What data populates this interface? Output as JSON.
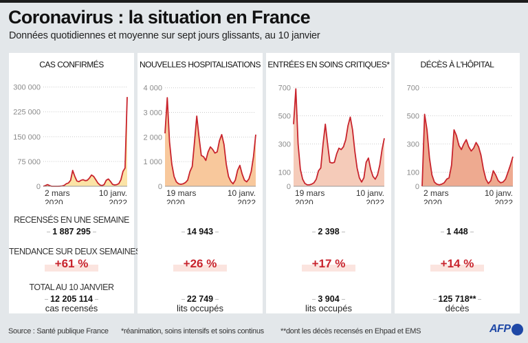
{
  "header": {
    "title": "Coronavirus : la situation en France",
    "subtitle": "Données quotidiennes et moyenne sur sept jours glissants, au 10 janvier"
  },
  "row_labels": {
    "weekly": "RECENSÉS EN UNE SEMAINE",
    "trend": "TENDANCE SUR DEUX SEMAINES",
    "total": "TOTAL AU 10 JANVIER"
  },
  "colors": {
    "line": "#c8232c",
    "trend_text": "#c8232c",
    "trend_bg": "#fbe4df",
    "logo": "#1f48a6"
  },
  "panels": [
    {
      "title": "CAS CONFIRMÉS",
      "weekly": "1 887 295",
      "trend": "+61 %",
      "total": "12 205 114",
      "unit": "cas recensés"
    },
    {
      "title": "NOUVELLES HOSPITALISATIONS",
      "weekly": "14 943",
      "trend": "+26 %",
      "total": "22 749",
      "unit": "lits occupés"
    },
    {
      "title": "ENTRÉES EN SOINS CRITIQUES*",
      "weekly": "2 398",
      "trend": "+17 %",
      "total": "3 904",
      "unit": "lits occupés"
    },
    {
      "title": "DÉCÈS À L'HÔPITAL",
      "weekly": "1 448",
      "trend": "+14 %",
      "total": "125 718**",
      "unit": "décès"
    }
  ],
  "footer": {
    "source": "Source : Santé publique France",
    "note1": "*réanimation, soins intensifs et soins continus",
    "note2": "**dont les décès recensés en Ehpad et EMS",
    "logo": "AFP"
  },
  "chart_data": [
    {
      "type": "area",
      "title": "CAS CONFIRMÉS",
      "x_start_label": [
        "2 mars",
        "2020"
      ],
      "x_end_label": [
        "10 janv.",
        "2022"
      ],
      "ylim": [
        0,
        320000
      ],
      "yticks": [
        0,
        75000,
        150000,
        225000,
        300000
      ],
      "ytick_labels": [
        "0",
        "75 000",
        "150 000",
        "225 000",
        "300 000"
      ],
      "fill_color": "#fbe3a6",
      "series": [
        {
          "name": "moyenne sur sept jours",
          "values": [
            0,
            2000,
            5000,
            2000,
            0,
            0,
            0,
            0,
            500,
            1000,
            3000,
            8000,
            10000,
            18000,
            48000,
            30000,
            16000,
            14000,
            18000,
            20000,
            17000,
            18000,
            25000,
            34000,
            30000,
            20000,
            10000,
            4000,
            2000,
            5000,
            18000,
            22000,
            15000,
            6000,
            4000,
            5000,
            8000,
            20000,
            45000,
            55000,
            270000
          ]
        }
      ]
    },
    {
      "type": "area",
      "title": "NOUVELLES HOSPITALISATIONS",
      "x_start_label": [
        "19 mars",
        "2020"
      ],
      "x_end_label": [
        "10 janv.",
        "2022"
      ],
      "ylim": [
        0,
        4300
      ],
      "yticks": [
        0,
        1000,
        2000,
        3000,
        4000
      ],
      "ytick_labels": [
        "0",
        "1 000",
        "2 000",
        "3 000",
        "4 000"
      ],
      "fill_color": "#f8c89c",
      "series": [
        {
          "name": "moyenne sur sept jours",
          "values": [
            2150,
            3600,
            1800,
            900,
            400,
            180,
            100,
            80,
            100,
            150,
            250,
            600,
            800,
            1800,
            2850,
            2000,
            1250,
            1200,
            1050,
            1400,
            1600,
            1500,
            1350,
            1400,
            1850,
            2100,
            1700,
            900,
            400,
            200,
            100,
            250,
            650,
            850,
            500,
            250,
            180,
            300,
            600,
            1200,
            2100
          ]
        }
      ]
    },
    {
      "type": "area",
      "title": "ENTRÉES EN SOINS CRITIQUES*",
      "x_start_label": [
        "19 mars",
        "2020"
      ],
      "x_end_label": [
        "10 janv.",
        "2022"
      ],
      "ylim": [
        0,
        750
      ],
      "yticks": [
        0,
        100,
        300,
        500,
        700
      ],
      "ytick_labels": [
        "0",
        "100",
        "300",
        "500",
        "700"
      ],
      "fill_color": "#f5cbb9",
      "series": [
        {
          "name": "moyenne sur sept jours",
          "values": [
            440,
            690,
            300,
            120,
            50,
            20,
            10,
            10,
            15,
            25,
            50,
            110,
            130,
            300,
            440,
            300,
            170,
            165,
            170,
            230,
            270,
            260,
            280,
            330,
            430,
            490,
            400,
            250,
            130,
            60,
            30,
            60,
            170,
            200,
            120,
            70,
            50,
            80,
            150,
            260,
            340
          ]
        }
      ]
    },
    {
      "type": "area",
      "title": "DÉCÈS À L'HÔPITAL",
      "x_start_label": [
        "2 mars",
        "2020"
      ],
      "x_end_label": [
        "10 janv.",
        "2022"
      ],
      "ylim": [
        0,
        750
      ],
      "yticks": [
        0,
        100,
        300,
        500,
        700
      ],
      "ytick_labels": [
        "0",
        "100",
        "300",
        "500",
        "700"
      ],
      "fill_color": "#eeaa90",
      "series": [
        {
          "name": "moyenne sur sept jours",
          "values": [
            0,
            510,
            400,
            200,
            80,
            30,
            15,
            10,
            15,
            25,
            50,
            60,
            150,
            400,
            360,
            290,
            260,
            300,
            330,
            280,
            250,
            270,
            310,
            280,
            220,
            120,
            50,
            20,
            40,
            110,
            80,
            40,
            25,
            30,
            50,
            100,
            150,
            210
          ]
        }
      ]
    }
  ]
}
